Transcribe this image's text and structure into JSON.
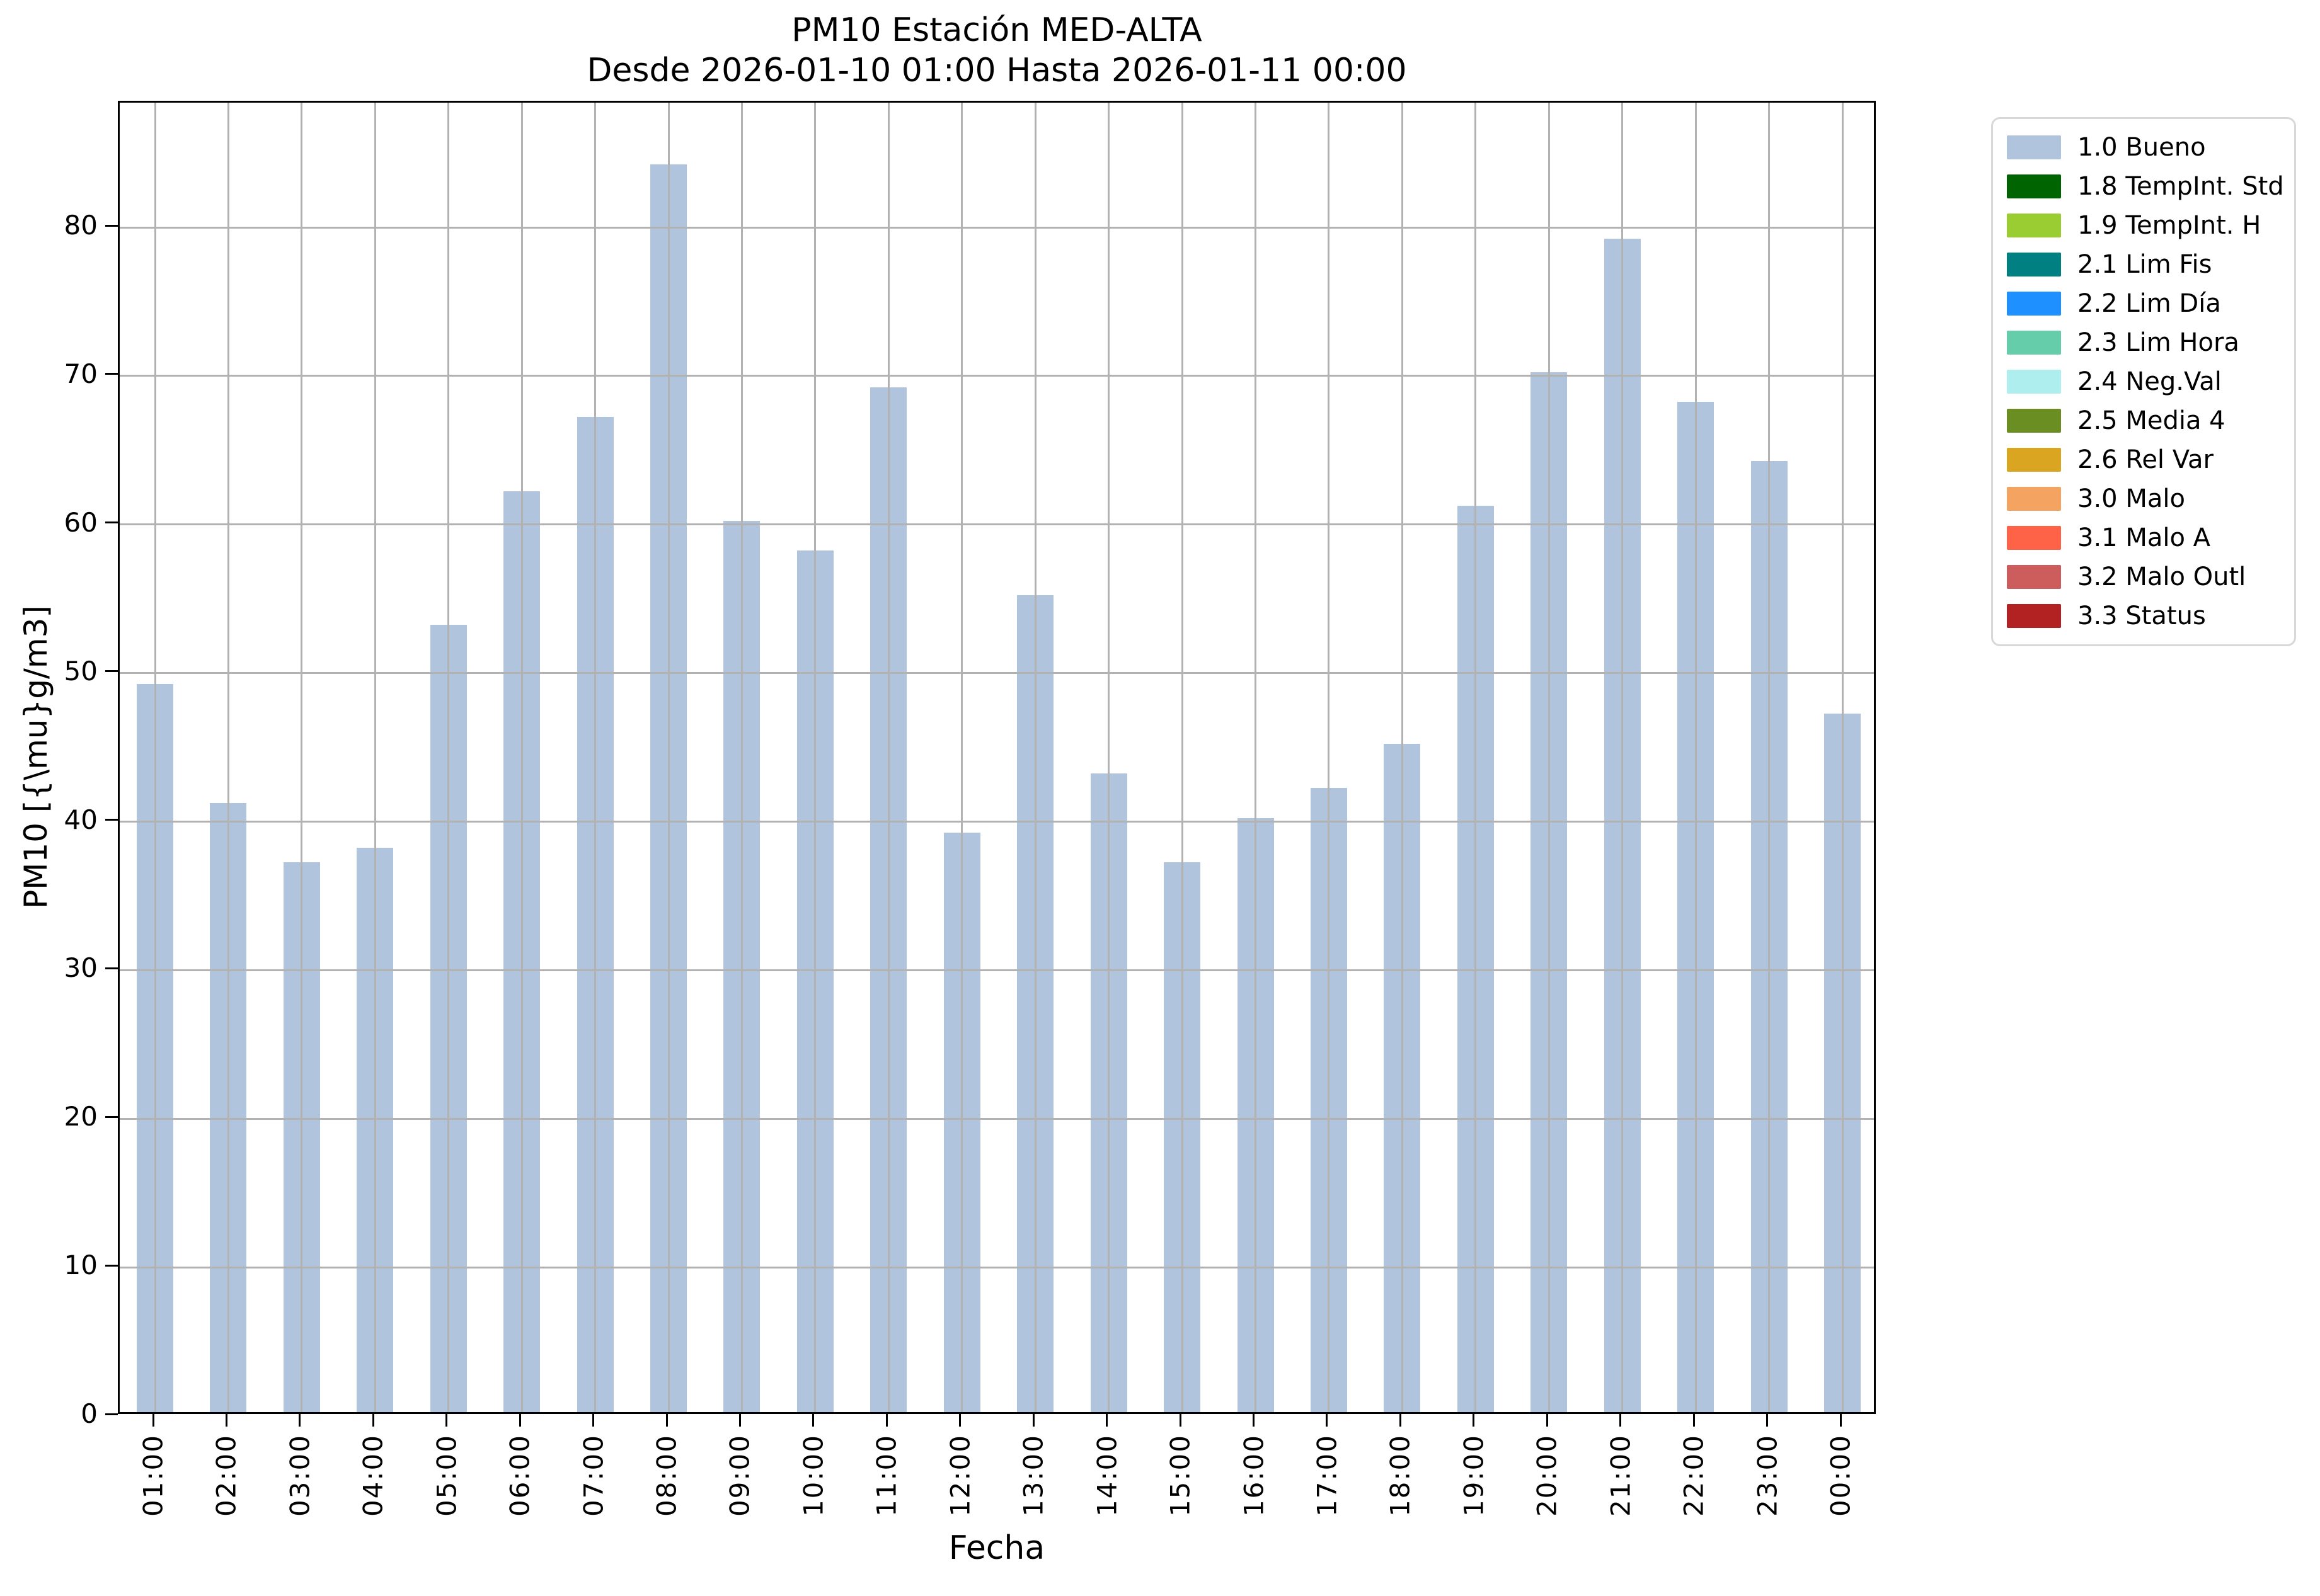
{
  "title": {
    "line1": "PM10 Estación MED-ALTA",
    "line2": "Desde 2026-01-10 01:00 Hasta 2026-01-11 00:00"
  },
  "axes": {
    "xlabel": "Fecha",
    "ylabel": "PM10 [{\\mu}g/m3]"
  },
  "chart_data": {
    "type": "bar",
    "title": "PM10 Estación MED-ALTA",
    "subtitle": "Desde 2026-01-10 01:00 Hasta 2026-01-11 00:00",
    "xlabel": "Fecha",
    "ylabel": "PM10 [{\\mu}g/m3]",
    "categories": [
      "01:00",
      "02:00",
      "03:00",
      "04:00",
      "05:00",
      "06:00",
      "07:00",
      "08:00",
      "09:00",
      "10:00",
      "11:00",
      "12:00",
      "13:00",
      "14:00",
      "15:00",
      "16:00",
      "17:00",
      "18:00",
      "19:00",
      "20:00",
      "21:00",
      "22:00",
      "23:00",
      "00:00"
    ],
    "values": [
      49,
      41,
      37,
      38,
      53,
      62,
      67,
      84,
      60,
      58,
      69,
      39,
      55,
      43,
      37,
      40,
      42,
      45,
      61,
      70,
      79,
      68,
      64,
      47
    ],
    "series_label": "1.0 Bueno",
    "bar_color": "#b0c4de",
    "ylim": [
      0,
      88.4
    ],
    "yticks": [
      0,
      10,
      20,
      30,
      40,
      50,
      60,
      70,
      80
    ],
    "grid": true,
    "legend_position": "outside upper right"
  },
  "legend": {
    "entries": [
      {
        "label": "1.0 Bueno",
        "color": "#b0c4de"
      },
      {
        "label": "1.8 TempInt. Std",
        "color": "#006400"
      },
      {
        "label": "1.9 TempInt. H",
        "color": "#9acd32"
      },
      {
        "label": "2.1 Lim Fis",
        "color": "#008080"
      },
      {
        "label": "2.2 Lim Día",
        "color": "#1e90ff"
      },
      {
        "label": "2.3 Lim Hora",
        "color": "#66cdaa"
      },
      {
        "label": "2.4 Neg.Val",
        "color": "#afeeee"
      },
      {
        "label": "2.5 Media 4",
        "color": "#6b8e23"
      },
      {
        "label": "2.6 Rel Var",
        "color": "#daa520"
      },
      {
        "label": "3.0 Malo",
        "color": "#f4a460"
      },
      {
        "label": "3.1 Malo A",
        "color": "#ff6347"
      },
      {
        "label": "3.2 Malo Outl",
        "color": "#cd5c5c"
      },
      {
        "label": "3.3 Status",
        "color": "#b22222"
      }
    ]
  }
}
